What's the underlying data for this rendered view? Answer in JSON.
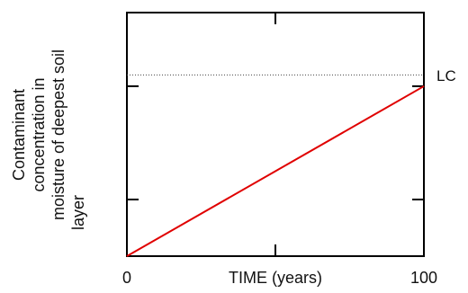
{
  "chart_data": {
    "type": "line",
    "ylabel_lines": [
      "Contaminant",
      "concentration in",
      "moisture of deepest soil",
      "layer"
    ],
    "xlabel": "TIME (years)",
    "xlim": [
      0,
      100
    ],
    "ylim": [
      0,
      4.3
    ],
    "x_tick_values": [
      0,
      50,
      100
    ],
    "x_tick_labels": [
      "0",
      "",
      "100"
    ],
    "y_tick_values": [
      1,
      3
    ],
    "series": [
      {
        "x": [
          0,
          100
        ],
        "y": [
          0,
          3
        ],
        "color": "#e00000"
      }
    ],
    "reference_lines": [
      {
        "y": 3.2,
        "label": "LC",
        "style": "dotted"
      }
    ],
    "grid": false
  }
}
